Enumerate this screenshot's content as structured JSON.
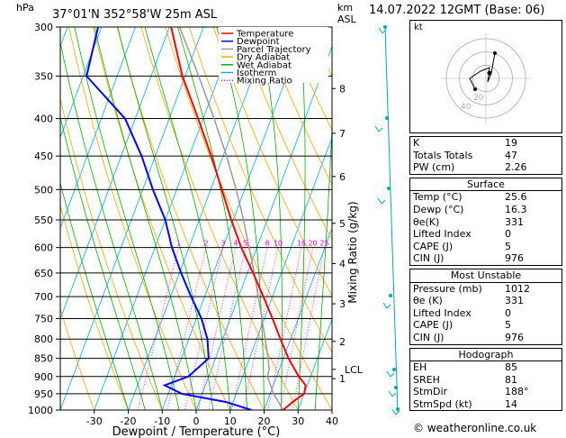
{
  "header": {
    "location": "37°01'N  352°58'W  25m  ASL",
    "hpa_label": "hPa",
    "km_label": "km",
    "asl_label": "ASL",
    "datetime": "14.07.2022  12GMT  (Base: 06)"
  },
  "legend": {
    "items": [
      {
        "label": "Temperature",
        "color": "#ff0000",
        "style": "solid"
      },
      {
        "label": "Dewpoint",
        "color": "#0000ff",
        "style": "solid"
      },
      {
        "label": "Parcel Trajectory",
        "color": "#999999",
        "style": "solid"
      },
      {
        "label": "Dry Adiabat",
        "color": "#ffa500",
        "style": "solid"
      },
      {
        "label": "Wet Adiabat",
        "color": "#00b000",
        "style": "solid"
      },
      {
        "label": "Isotherm",
        "color": "#00aaff",
        "style": "solid"
      },
      {
        "label": "Mixing Ratio",
        "color": "#ff00ff",
        "style": "dotted"
      }
    ]
  },
  "chart_data": {
    "type": "line",
    "xlabel": "Dewpoint / Temperature (°C)",
    "ylabel_right": "Mixing Ratio (g/kg)",
    "pressure_levels": [
      300,
      350,
      400,
      450,
      500,
      550,
      600,
      650,
      700,
      750,
      800,
      850,
      900,
      950,
      1000
    ],
    "x_ticks": [
      -30,
      -20,
      -10,
      0,
      10,
      20,
      30,
      40
    ],
    "xlim": [
      -40,
      40
    ],
    "plim": [
      300,
      1000
    ],
    "skew_deg_per_log": 35,
    "km_ticks": [
      {
        "label": "8",
        "p": 364
      },
      {
        "label": "7",
        "p": 419
      },
      {
        "label": "6",
        "p": 480
      },
      {
        "label": "5",
        "p": 556
      },
      {
        "label": "4",
        "p": 631
      },
      {
        "label": "3",
        "p": 716
      },
      {
        "label": "2",
        "p": 806
      },
      {
        "label": "1",
        "p": 906
      },
      {
        "label": "LCL",
        "p": 880
      }
    ],
    "mixing_ratio_labels": [
      "1",
      "2",
      "3",
      "4",
      "5",
      "8",
      "10",
      "16",
      "20",
      "25"
    ],
    "mixing_ratio_values": [
      1,
      2,
      3,
      4,
      5,
      8,
      10,
      16,
      20,
      25
    ],
    "mixing_ratio_label_p": 600,
    "series": [
      {
        "name": "Temperature",
        "color": "#ff0000",
        "p": [
          1000,
          975,
          950,
          925,
          900,
          850,
          800,
          750,
          700,
          650,
          600,
          550,
          500,
          450,
          400,
          350,
          300
        ],
        "t": [
          25.6,
          27.5,
          30.0,
          29.5,
          26.5,
          21.5,
          17.0,
          12.4,
          7.3,
          1.7,
          -4.6,
          -10.6,
          -16.7,
          -23.5,
          -31.5,
          -40.8,
          -49.5
        ]
      },
      {
        "name": "Dewpoint",
        "color": "#0000ff",
        "p": [
          1000,
          975,
          950,
          925,
          900,
          850,
          800,
          750,
          700,
          650,
          600,
          550,
          500,
          450,
          400,
          350,
          300
        ],
        "t": [
          16.3,
          8.0,
          -6.0,
          -12.0,
          -6.0,
          -2.0,
          -4.5,
          -8.5,
          -14.0,
          -19.5,
          -25.0,
          -30.0,
          -37.0,
          -44.0,
          -53.0,
          -69.0,
          -71.0
        ]
      },
      {
        "name": "Parcel Trajectory",
        "color": "#999999",
        "p": [
          1000,
          950,
          900,
          880,
          850,
          800,
          750,
          700,
          650,
          600,
          550,
          500,
          450,
          400,
          350,
          300
        ],
        "t": [
          25.6,
          21.0,
          17.3,
          17.0,
          15.5,
          12.5,
          9.3,
          5.8,
          2.0,
          -2.3,
          -7.0,
          -12.5,
          -19.0,
          -26.8,
          -36.0,
          -47.0
        ]
      }
    ]
  },
  "indices": {
    "rows": [
      {
        "label": "K",
        "value": "19"
      },
      {
        "label": "Totals Totals",
        "value": "47"
      },
      {
        "label": "PW (cm)",
        "value": "2.26"
      }
    ]
  },
  "surface": {
    "title": "Surface",
    "rows": [
      {
        "label": "Temp (°C)",
        "value": "25.6"
      },
      {
        "label": "Dewp (°C)",
        "value": "16.3"
      },
      {
        "label": "θe(K)",
        "value": "331"
      },
      {
        "label": "Lifted Index",
        "value": "0"
      },
      {
        "label": "CAPE (J)",
        "value": "5"
      },
      {
        "label": "CIN (J)",
        "value": "976"
      }
    ]
  },
  "most_unstable": {
    "title": "Most Unstable",
    "rows": [
      {
        "label": "Pressure (mb)",
        "value": "1012"
      },
      {
        "label": "θe (K)",
        "value": "331"
      },
      {
        "label": "Lifted Index",
        "value": "0"
      },
      {
        "label": "CAPE (J)",
        "value": "5"
      },
      {
        "label": "CIN (J)",
        "value": "976"
      }
    ]
  },
  "hodograph": {
    "title": "Hodograph",
    "kt_label": "kt",
    "ring_labels": [
      "20",
      "40"
    ],
    "rows": [
      {
        "label": "EH",
        "value": "85"
      },
      {
        "label": "SREH",
        "value": "81"
      },
      {
        "label": "StmDir",
        "value": "188°"
      },
      {
        "label": "StmSpd (kt)",
        "value": "14"
      }
    ]
  },
  "footer": {
    "text": "© weatheronline.co.uk"
  }
}
